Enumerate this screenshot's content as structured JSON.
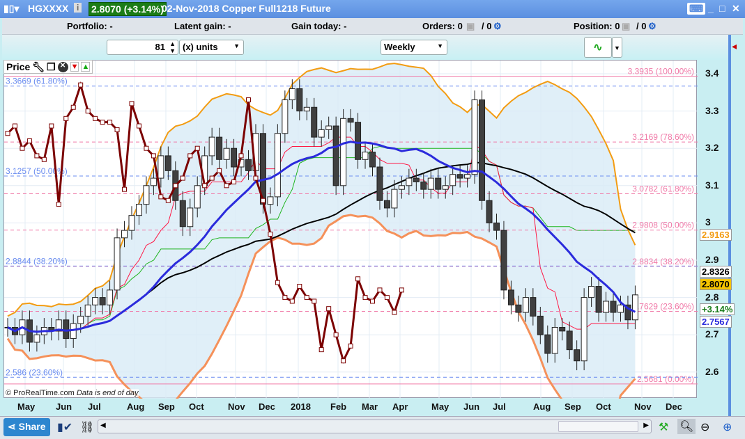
{
  "titlebar": {
    "symbol": "HGXXXX",
    "price": "2.8070 (+3.14%)",
    "description": "02-Nov-2018 Copper Full1218 Future"
  },
  "infobar": {
    "portfolio": "Portfolio: -",
    "latent": "Latent gain: -",
    "gain_today": "Gain today: -",
    "orders": "Orders: 0",
    "orders_b": "/ 0",
    "position": "Position: 0",
    "position_b": "/ 0"
  },
  "toolbar": {
    "quantity": "81",
    "units": "(x) units",
    "timeframe": "Weekly"
  },
  "panel": {
    "title": "Price"
  },
  "footer": {
    "copyright": "© ProRealTime.com",
    "note": "Data is end of day",
    "share": "Share"
  },
  "colors": {
    "up": "#ffffff",
    "down": "#404040",
    "sma": "#2b2bdc",
    "bollinger": "#f39c12",
    "long_ma": "#000000",
    "overlay": "#7b0000",
    "fib": "#f07aa8",
    "fib_blue": "#6a8cf0"
  },
  "chart_data": {
    "type": "candlestick",
    "ylim": [
      2.55,
      3.43
    ],
    "y_ticks": [
      "3.4",
      "3.3",
      "3.2",
      "3.1",
      "3",
      "2.9",
      "2.8",
      "2.7",
      "2.6"
    ],
    "x_ticks": [
      "May",
      "Jun",
      "Jul",
      "Aug",
      "Sep",
      "Oct",
      "Nov",
      "Dec",
      "2018",
      "Feb",
      "Mar",
      "Apr",
      "May",
      "Jun",
      "Jul",
      "Aug",
      "Sep",
      "Oct",
      "Nov",
      "Dec"
    ],
    "closes": [
      2.72,
      2.7,
      2.74,
      2.68,
      2.7,
      2.72,
      2.71,
      2.74,
      2.69,
      2.73,
      2.75,
      2.78,
      2.8,
      2.78,
      2.82,
      2.96,
      2.98,
      3.02,
      3.05,
      3.1,
      3.12,
      3.18,
      3.14,
      3.06,
      2.99,
      3.04,
      3.1,
      3.18,
      3.23,
      3.17,
      3.2,
      3.15,
      3.17,
      3.14,
      3.24,
      3.05,
      3.07,
      3.24,
      3.33,
      3.36,
      3.3,
      3.31,
      3.23,
      3.25,
      3.26,
      3.1,
      3.28,
      3.27,
      3.17,
      3.19,
      3.15,
      3.06,
      3.04,
      3.09,
      3.1,
      3.12,
      3.11,
      3.09,
      3.12,
      3.09,
      3.1,
      3.13,
      3.12,
      3.13,
      3.33,
      3.06,
      3.0,
      2.98,
      2.82,
      2.78,
      2.76,
      2.8,
      2.75,
      2.7,
      2.65,
      2.72,
      2.71,
      2.66,
      2.63,
      2.8,
      2.83,
      2.76,
      2.79,
      2.76,
      2.78,
      2.74,
      2.807
    ],
    "overlay_series": [
      3.24,
      3.26,
      3.2,
      3.22,
      3.18,
      3.17,
      3.26,
      3.05,
      3.28,
      3.31,
      3.37,
      3.3,
      3.28,
      3.27,
      3.27,
      3.25,
      3.09,
      3.32,
      3.26,
      3.2,
      3.18,
      3.07,
      3.06,
      3.1,
      3.12,
      3.18,
      3.2,
      3.1,
      3.12,
      3.14,
      3.1,
      3.11,
      3.18,
      3.33,
      3.12,
      3.06,
      2.97,
      2.84,
      2.8,
      2.79,
      2.83,
      2.8,
      2.79,
      2.66,
      2.77,
      2.7,
      2.63,
      2.67,
      2.85,
      2.8,
      2.79,
      2.82,
      2.8,
      2.76,
      2.82
    ],
    "fib_levels": [
      {
        "value": 3.3935,
        "label": "3.3935 (100.00%)"
      },
      {
        "value": 3.2169,
        "label": "3.2169 (78.60%)"
      },
      {
        "value": 3.0782,
        "label": "3.0782 (61.80%)"
      },
      {
        "value": 2.9808,
        "label": "2.9808 (50.00%)"
      },
      {
        "value": 2.8834,
        "label": "2.8834 (38.20%)"
      },
      {
        "value": 2.7629,
        "label": "2.7629 (23.60%)"
      },
      {
        "value": 2.5681,
        "label": "2.5681 (0.00%)"
      }
    ],
    "fib_levels_blue": [
      {
        "value": 3.3669,
        "label": "3.3669 (61.80%)"
      },
      {
        "value": 3.1257,
        "label": "3.1257 (50.00%)"
      },
      {
        "value": 2.8844,
        "label": "2.8844 (38.20%)"
      },
      {
        "value": 2.586,
        "label": "2.586 (23.60%)"
      }
    ],
    "tags": {
      "bollinger": "2.9163",
      "long_ma": "2.8326",
      "last": "2.8070",
      "change": "+3.14%",
      "sma": "2.7567"
    }
  }
}
